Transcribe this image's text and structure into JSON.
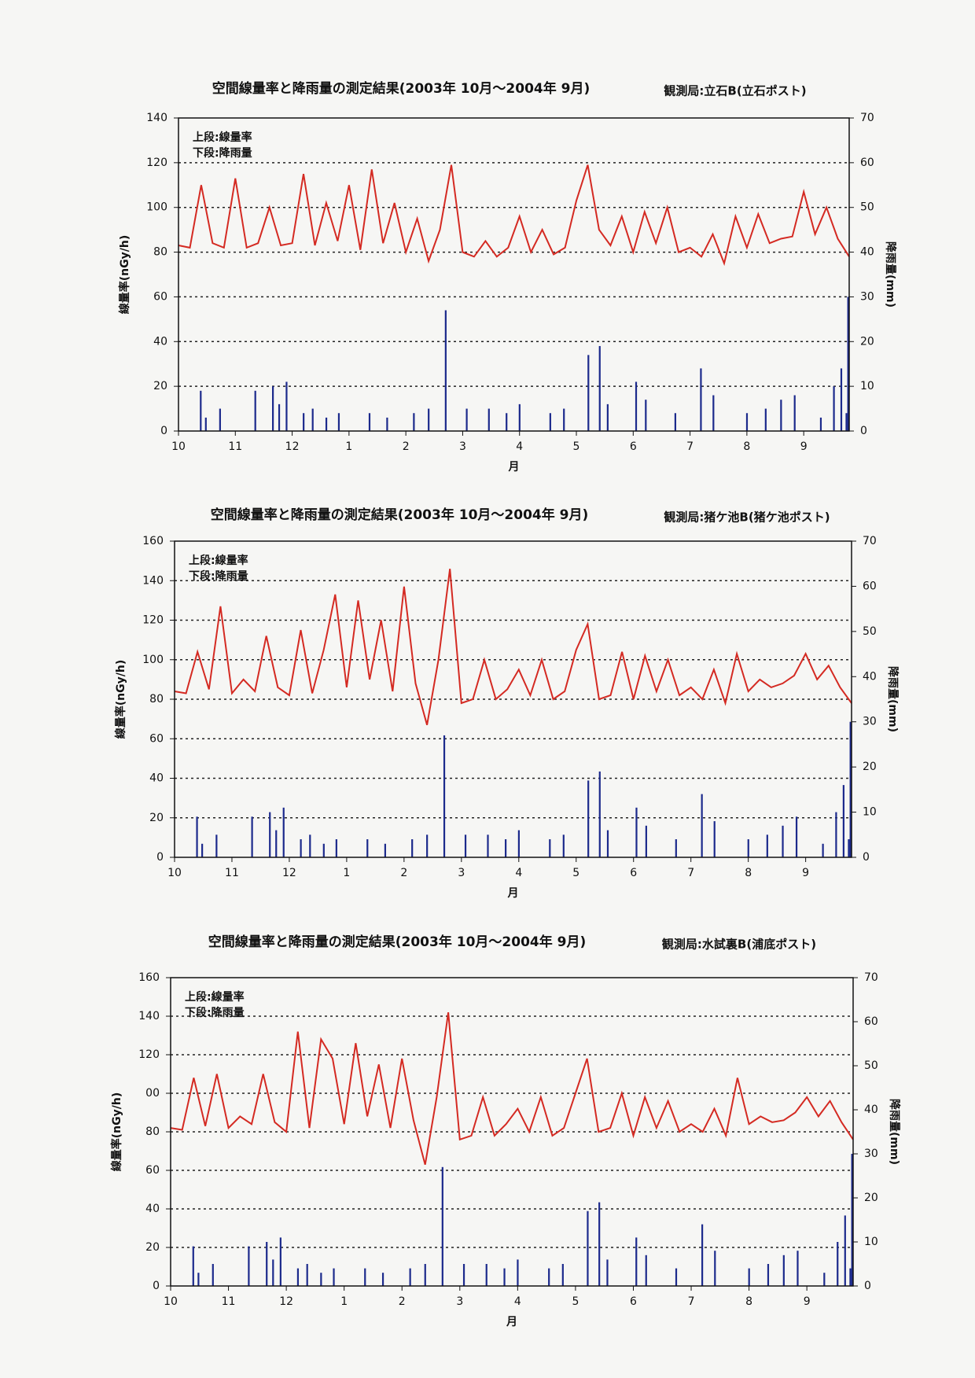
{
  "chart_data": [
    {
      "type": "combo",
      "title": "空間線量率と降雨量の測定結果(2003年 10月～2004年 9月)",
      "station": "観測局:立石B(立石ポスト)",
      "annotations": [
        "上段:線量率",
        "下段:降雨量"
      ],
      "ylabel": "線量率(nGy/h)",
      "y2label": "降雨量(mm)",
      "xlabel": "月",
      "xlim": [
        0,
        11.8
      ],
      "xticks": [
        {
          "value": 0,
          "label": "10"
        },
        {
          "value": 1,
          "label": "11"
        },
        {
          "value": 2,
          "label": "12"
        },
        {
          "value": 3,
          "label": "1"
        },
        {
          "value": 4,
          "label": "2"
        },
        {
          "value": 5,
          "label": "3"
        },
        {
          "value": 6,
          "label": "4"
        },
        {
          "value": 7,
          "label": "5"
        },
        {
          "value": 8,
          "label": "6"
        },
        {
          "value": 9,
          "label": "7"
        },
        {
          "value": 10,
          "label": "8"
        },
        {
          "value": 11,
          "label": "9"
        }
      ],
      "ylim": [
        0,
        140
      ],
      "yticks": [
        0,
        20,
        40,
        60,
        80,
        100,
        120,
        140
      ],
      "y2lim": [
        0,
        70
      ],
      "y2ticks": [
        0,
        10,
        20,
        30,
        40,
        50,
        60,
        70
      ],
      "grid": true,
      "series": [
        {
          "style": "line",
          "color": "#d42a22",
          "x": [
            0,
            0.2,
            0.4,
            0.6,
            0.8,
            1,
            1.2,
            1.4,
            1.6,
            1.8,
            2,
            2.2,
            2.4,
            2.6,
            2.8,
            3,
            3.2,
            3.4,
            3.6,
            3.8,
            4,
            4.2,
            4.4,
            4.6,
            4.8,
            5,
            5.2,
            5.4,
            5.6,
            5.8,
            6,
            6.2,
            6.4,
            6.6,
            6.8,
            7,
            7.2,
            7.4,
            7.6,
            7.8,
            8,
            8.2,
            8.4,
            8.6,
            8.8,
            9,
            9.2,
            9.4,
            9.6,
            9.8,
            10,
            10.2,
            10.4,
            10.6,
            10.8,
            11,
            11.2,
            11.4,
            11.6,
            11.8
          ],
          "values": [
            83,
            82,
            110,
            84,
            82,
            113,
            82,
            84,
            100,
            83,
            84,
            115,
            83,
            102,
            85,
            110,
            81,
            117,
            84,
            102,
            80,
            95,
            76,
            90,
            119,
            80,
            78,
            85,
            78,
            82,
            96,
            80,
            90,
            79,
            82,
            103,
            119,
            90,
            83,
            96,
            80,
            98,
            84,
            100,
            80,
            82,
            78,
            88,
            75,
            96,
            82,
            97,
            84,
            86,
            87,
            107,
            88,
            100,
            86,
            78
          ]
        },
        {
          "style": "bar",
          "axis": "y2",
          "color": "#1c2a8c",
          "x": [
            0.39,
            0.48,
            0.73,
            1.35,
            1.66,
            1.77,
            1.9,
            2.2,
            2.36,
            2.6,
            2.82,
            3.36,
            3.67,
            4.14,
            4.4,
            4.7,
            5.07,
            5.46,
            5.77,
            6.0,
            6.54,
            6.78,
            7.21,
            7.41,
            7.55,
            8.05,
            8.22,
            8.74,
            9.19,
            9.41,
            10.0,
            10.33,
            10.6,
            10.84,
            11.3,
            11.53,
            11.66,
            11.75,
            11.78
          ],
          "values": [
            9,
            3,
            5,
            9,
            10,
            6,
            11,
            4,
            5,
            3,
            4,
            4,
            3,
            4,
            5,
            27,
            5,
            5,
            4,
            6,
            4,
            5,
            17,
            19,
            6,
            11,
            7,
            4,
            14,
            8,
            4,
            5,
            7,
            8,
            3,
            10,
            14,
            4,
            30
          ]
        }
      ]
    },
    {
      "type": "combo",
      "title": "空間線量率と降雨量の測定結果(2003年 10月～2004年 9月)",
      "station": "観測局:猪ケ池B(猪ケ池ポスト)",
      "annotations": [
        "上段:線量率",
        "下段:降雨量"
      ],
      "ylabel": "線量率(nGy/h)",
      "y2label": "降雨量(mm)",
      "xlabel": "月",
      "xlim": [
        0,
        11.8
      ],
      "xticks": [
        {
          "value": 0,
          "label": "10"
        },
        {
          "value": 1,
          "label": "11"
        },
        {
          "value": 2,
          "label": "12"
        },
        {
          "value": 3,
          "label": "1"
        },
        {
          "value": 4,
          "label": "2"
        },
        {
          "value": 5,
          "label": "3"
        },
        {
          "value": 6,
          "label": "4"
        },
        {
          "value": 7,
          "label": "5"
        },
        {
          "value": 8,
          "label": "6"
        },
        {
          "value": 9,
          "label": "7"
        },
        {
          "value": 10,
          "label": "8"
        },
        {
          "value": 11,
          "label": "9"
        }
      ],
      "ylim": [
        0,
        160
      ],
      "yticks": [
        0,
        20,
        40,
        60,
        80,
        100,
        120,
        140,
        160
      ],
      "y2lim": [
        0,
        70
      ],
      "y2ticks": [
        0,
        10,
        20,
        30,
        40,
        50,
        60,
        70
      ],
      "grid": true,
      "series": [
        {
          "style": "line",
          "color": "#d42a22",
          "x": [
            0,
            0.2,
            0.4,
            0.6,
            0.8,
            1,
            1.2,
            1.4,
            1.6,
            1.8,
            2,
            2.2,
            2.4,
            2.6,
            2.8,
            3,
            3.2,
            3.4,
            3.6,
            3.8,
            4,
            4.2,
            4.4,
            4.6,
            4.8,
            5,
            5.2,
            5.4,
            5.6,
            5.8,
            6,
            6.2,
            6.4,
            6.6,
            6.8,
            7,
            7.2,
            7.4,
            7.6,
            7.8,
            8,
            8.2,
            8.4,
            8.6,
            8.8,
            9,
            9.2,
            9.4,
            9.6,
            9.8,
            10,
            10.2,
            10.4,
            10.6,
            10.8,
            11,
            11.2,
            11.4,
            11.6,
            11.8
          ],
          "values": [
            84,
            83,
            104,
            85,
            127,
            83,
            90,
            84,
            112,
            86,
            82,
            115,
            83,
            105,
            133,
            86,
            130,
            90,
            120,
            84,
            137,
            88,
            67,
            100,
            146,
            78,
            80,
            100,
            80,
            85,
            95,
            82,
            100,
            80,
            84,
            105,
            118,
            80,
            82,
            104,
            80,
            102,
            84,
            100,
            82,
            86,
            80,
            95,
            78,
            103,
            84,
            90,
            86,
            88,
            92,
            103,
            90,
            97,
            86,
            78
          ]
        },
        {
          "style": "bar",
          "axis": "y2",
          "color": "#1c2a8c",
          "x": [
            0.39,
            0.48,
            0.73,
            1.35,
            1.66,
            1.77,
            1.9,
            2.2,
            2.36,
            2.6,
            2.82,
            3.36,
            3.67,
            4.14,
            4.4,
            4.7,
            5.07,
            5.46,
            5.77,
            6.0,
            6.54,
            6.78,
            7.21,
            7.41,
            7.55,
            8.05,
            8.22,
            8.74,
            9.19,
            9.41,
            10.0,
            10.33,
            10.6,
            10.84,
            11.3,
            11.53,
            11.66,
            11.75,
            11.78
          ],
          "values": [
            9,
            3,
            5,
            9,
            10,
            6,
            11,
            4,
            5,
            3,
            4,
            4,
            3,
            4,
            5,
            27,
            5,
            5,
            4,
            6,
            4,
            5,
            17,
            19,
            6,
            11,
            7,
            4,
            14,
            8,
            4,
            5,
            7,
            9,
            3,
            10,
            16,
            4,
            30
          ]
        }
      ]
    },
    {
      "type": "combo",
      "title": "空間線量率と降雨量の測定結果(2003年 10月～2004年 9月)",
      "station": "観測局:水試裏B(浦底ポスト)",
      "annotations": [
        "上段:線量率",
        "下段:降雨量"
      ],
      "ylabel": "線量率(nGy/h)",
      "y2label": "降雨量(mm)",
      "xlabel": "月",
      "xlim": [
        0,
        11.8
      ],
      "xticks": [
        {
          "value": 0,
          "label": "10"
        },
        {
          "value": 1,
          "label": "11"
        },
        {
          "value": 2,
          "label": "12"
        },
        {
          "value": 3,
          "label": "1"
        },
        {
          "value": 4,
          "label": "2"
        },
        {
          "value": 5,
          "label": "3"
        },
        {
          "value": 6,
          "label": "4"
        },
        {
          "value": 7,
          "label": "5"
        },
        {
          "value": 8,
          "label": "6"
        },
        {
          "value": 9,
          "label": "7"
        },
        {
          "value": 10,
          "label": "8"
        },
        {
          "value": 11,
          "label": "9"
        }
      ],
      "ylim": [
        0,
        160
      ],
      "yticks": [
        0,
        20,
        40,
        60,
        80,
        {
          "value": 100,
          "label": "00"
        },
        120,
        140,
        160
      ],
      "y2lim": [
        0,
        70
      ],
      "y2ticks": [
        0,
        10,
        20,
        30,
        40,
        50,
        60,
        70
      ],
      "grid": true,
      "series": [
        {
          "style": "line",
          "color": "#d42a22",
          "x": [
            0,
            0.2,
            0.4,
            0.6,
            0.8,
            1,
            1.2,
            1.4,
            1.6,
            1.8,
            2,
            2.2,
            2.4,
            2.6,
            2.8,
            3,
            3.2,
            3.4,
            3.6,
            3.8,
            4,
            4.2,
            4.4,
            4.6,
            4.8,
            5,
            5.2,
            5.4,
            5.6,
            5.8,
            6,
            6.2,
            6.4,
            6.6,
            6.8,
            7,
            7.2,
            7.4,
            7.6,
            7.8,
            8,
            8.2,
            8.4,
            8.6,
            8.8,
            9,
            9.2,
            9.4,
            9.6,
            9.8,
            10,
            10.2,
            10.4,
            10.6,
            10.8,
            11,
            11.2,
            11.4,
            11.6,
            11.8
          ],
          "values": [
            82,
            81,
            108,
            83,
            110,
            82,
            88,
            84,
            110,
            85,
            80,
            132,
            82,
            128,
            118,
            84,
            126,
            88,
            115,
            82,
            118,
            86,
            63,
            98,
            142,
            76,
            78,
            98,
            78,
            84,
            92,
            80,
            98,
            78,
            82,
            100,
            118,
            80,
            82,
            100,
            78,
            98,
            82,
            96,
            80,
            84,
            80,
            92,
            78,
            108,
            84,
            88,
            85,
            86,
            90,
            98,
            88,
            96,
            85,
            76
          ]
        },
        {
          "style": "bar",
          "axis": "y2",
          "color": "#1c2a8c",
          "x": [
            0.39,
            0.48,
            0.73,
            1.35,
            1.66,
            1.77,
            1.9,
            2.2,
            2.36,
            2.6,
            2.82,
            3.36,
            3.67,
            4.14,
            4.4,
            4.7,
            5.07,
            5.46,
            5.77,
            6.0,
            6.54,
            6.78,
            7.21,
            7.41,
            7.55,
            8.05,
            8.22,
            8.74,
            9.19,
            9.41,
            10.0,
            10.33,
            10.6,
            10.84,
            11.3,
            11.53,
            11.66,
            11.75,
            11.78
          ],
          "values": [
            9,
            3,
            5,
            9,
            10,
            6,
            11,
            4,
            5,
            3,
            4,
            4,
            3,
            4,
            5,
            27,
            5,
            5,
            4,
            6,
            4,
            5,
            17,
            19,
            6,
            11,
            7,
            4,
            14,
            8,
            4,
            5,
            7,
            8,
            3,
            10,
            16,
            4,
            30
          ]
        }
      ]
    }
  ]
}
